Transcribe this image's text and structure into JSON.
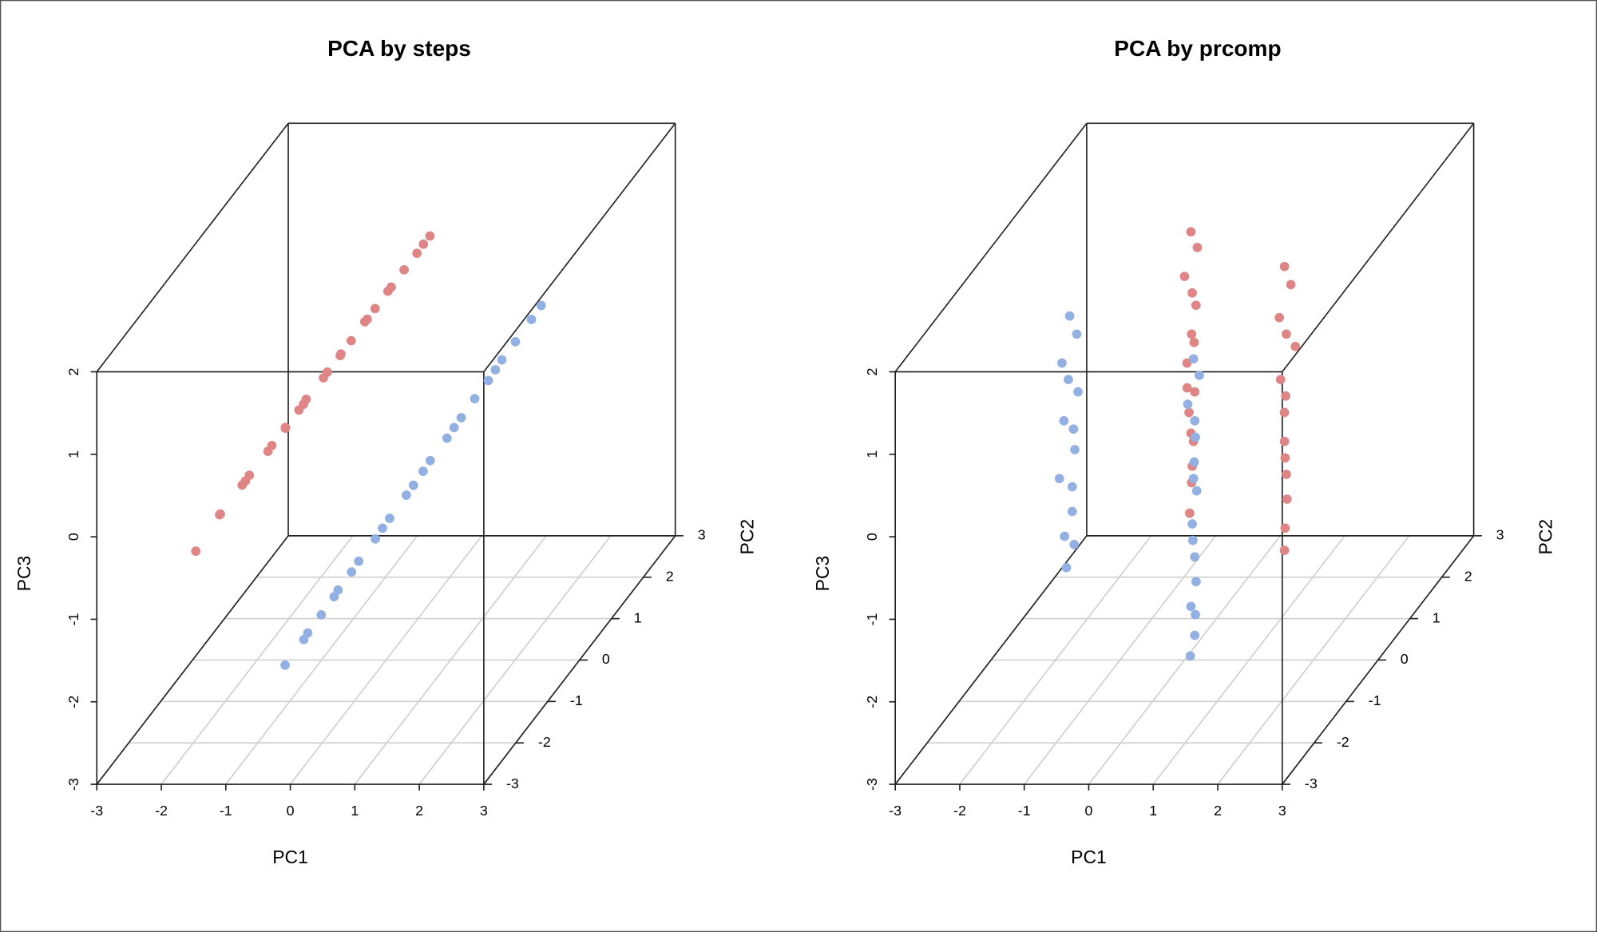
{
  "chart_data": [
    {
      "type": "scatter3d",
      "title": "PCA by steps",
      "xlabel": "PC1",
      "ylabel": "PC2",
      "zlabel": "PC3",
      "xlim": [
        -3,
        3
      ],
      "ylim": [
        -3,
        3
      ],
      "zlim": [
        -3,
        2
      ],
      "xticks": [
        -3,
        -2,
        -1,
        0,
        1,
        2,
        3
      ],
      "yticks": [
        -3,
        -2,
        -1,
        0,
        1,
        2,
        3
      ],
      "zticks": [
        -3,
        -2,
        -1,
        0,
        1,
        2
      ],
      "grid": true,
      "series": [
        {
          "color": "#e08585",
          "x": [
            -2.95,
            -2.63,
            -2.52,
            -2.33,
            -2.18,
            -2.07,
            -1.88,
            -1.77,
            -1.66,
            -1.51,
            -1.4,
            -1.28,
            -1.14,
            -1.02,
            -0.91,
            -0.76,
            -0.65,
            -0.54,
            -0.39,
            -0.28,
            -0.17,
            -0.02,
            0.13,
            0.28,
            0.43,
            0.58,
            0.73
          ],
          "y": [
            0,
            0.1,
            -0.1,
            0.2,
            0,
            -0.1,
            0.1,
            0,
            0.2,
            -0.1,
            0.1,
            0,
            -0.2,
            0.1,
            0,
            0.1,
            -0.1,
            0,
            0.2,
            -0.1,
            0,
            0.1,
            -0.1,
            0,
            0.1,
            0,
            -0.1
          ],
          "z": [
            -1.68,
            -1.29,
            -1.18,
            -0.98,
            -0.83,
            -0.71,
            -0.52,
            -0.4,
            -0.29,
            -0.13,
            -0.02,
            0.1,
            0.26,
            0.37,
            0.49,
            0.64,
            0.76,
            0.87,
            1.03,
            1.15,
            1.26,
            1.42,
            1.57,
            1.73,
            1.88,
            2.04,
            2.19
          ]
        },
        {
          "color": "#92b0e2",
          "x": [
            -1.07,
            -0.83,
            -0.67,
            -0.51,
            -0.36,
            -0.2,
            -0.04,
            0.12,
            0.28,
            0.44,
            0.6,
            0.76,
            0.92,
            1.07,
            1.23,
            1.39,
            1.55,
            1.71,
            1.87,
            2.03,
            2.19,
            2.34,
            2.5,
            2.7,
            2.9
          ],
          "y": [
            -1,
            -0.9,
            -1.1,
            -1,
            -0.9,
            -1.1,
            -1,
            -1.1,
            -0.9,
            -1,
            -1.1,
            -0.9,
            -1,
            -1,
            -1.1,
            -0.9,
            -1,
            -1.1,
            -1,
            -0.9,
            -1,
            -1.1,
            -1,
            -0.9,
            -1
          ],
          "z": [
            -2.56,
            -2.3,
            -2.12,
            -1.95,
            -1.78,
            -1.6,
            -1.43,
            -1.25,
            -1.08,
            -0.9,
            -0.73,
            -0.55,
            -0.38,
            -0.21,
            -0.03,
            0.14,
            0.32,
            0.49,
            0.67,
            0.84,
            1.02,
            1.19,
            1.36,
            1.58,
            1.8
          ]
        }
      ]
    },
    {
      "type": "scatter3d",
      "title": "PCA by prcomp",
      "xlabel": "PC1",
      "ylabel": "PC2",
      "zlabel": "PC3",
      "xlim": [
        -3,
        3
      ],
      "ylim": [
        -3,
        3
      ],
      "zlim": [
        -3,
        2
      ],
      "xticks": [
        -3,
        -2,
        -1,
        0,
        1,
        2,
        3
      ],
      "yticks": [
        -3,
        -2,
        -1,
        0,
        1,
        2,
        3
      ],
      "zticks": [
        -3,
        -2,
        -1,
        0,
        1,
        2
      ],
      "grid": true,
      "series": [
        {
          "color": "#e08585",
          "x": [
            0.1,
            0.15,
            0.05,
            0.12,
            0.08,
            0.16,
            0.1,
            0.04,
            0.14,
            0.11,
            0.07,
            0.15,
            0.09,
            0.12,
            0.06,
            0.13,
            1.55,
            1.6,
            1.52,
            1.58,
            1.62,
            1.54,
            1.57,
            1.5,
            1.6,
            1.56,
            1.53,
            1.59,
            1.61,
            1.55
          ],
          "y": [
            0,
            0.1,
            -0.1,
            0,
            0.2,
            -0.1,
            0.1,
            0,
            -0.2,
            0.1,
            0,
            -0.1,
            0.1,
            0,
            0.1,
            -0.1,
            0,
            0.1,
            -0.1,
            0,
            0.2,
            -0.1,
            0,
            0.1,
            -0.1,
            0,
            0.1,
            0,
            -0.1,
            0
          ],
          "z": [
            2.19,
            1.95,
            1.7,
            1.45,
            1.2,
            1.0,
            0.8,
            0.6,
            0.4,
            0.2,
            0.0,
            -0.2,
            -0.4,
            -0.65,
            -0.9,
            -1.17,
            1.77,
            1.5,
            1.2,
            0.95,
            0.7,
            0.45,
            0.2,
            -0.05,
            -0.3,
            -0.55,
            -0.8,
            -1.05,
            -1.35,
            -1.67
          ]
        },
        {
          "color": "#92b0e2",
          "x": [
            -1.78,
            -1.72,
            -1.85,
            -1.8,
            -1.75,
            -1.82,
            -1.77,
            -1.7,
            -1.84,
            -1.79,
            -1.74,
            -1.81,
            -1.76,
            -1.83,
            0.14,
            0.18,
            0.1,
            0.16,
            0.12,
            0.2,
            0.14,
            0.09,
            0.17,
            0.13,
            0.11,
            0.18,
            0.15,
            0.12,
            0.16,
            0.14
          ],
          "y": [
            0,
            0.1,
            -0.1,
            0,
            0.2,
            -0.1,
            0.1,
            0,
            -0.2,
            0.1,
            0,
            -0.1,
            0.1,
            0,
            0,
            0.1,
            -0.1,
            0,
            0.1,
            -0.1,
            0,
            0.2,
            -0.1,
            0,
            0.1,
            0,
            -0.1,
            0.1,
            0,
            -0.1
          ],
          "z": [
            1.17,
            0.9,
            0.65,
            0.4,
            0.15,
            -0.05,
            -0.25,
            -0.45,
            -0.7,
            -0.95,
            -1.2,
            -1.45,
            -1.65,
            -1.88,
            0.65,
            0.4,
            0.15,
            -0.1,
            -0.35,
            -0.55,
            -0.8,
            -1.05,
            -1.3,
            -1.55,
            -1.8,
            -2.05,
            -2.3,
            -2.5,
            -2.7,
            -2.9
          ]
        }
      ]
    }
  ]
}
